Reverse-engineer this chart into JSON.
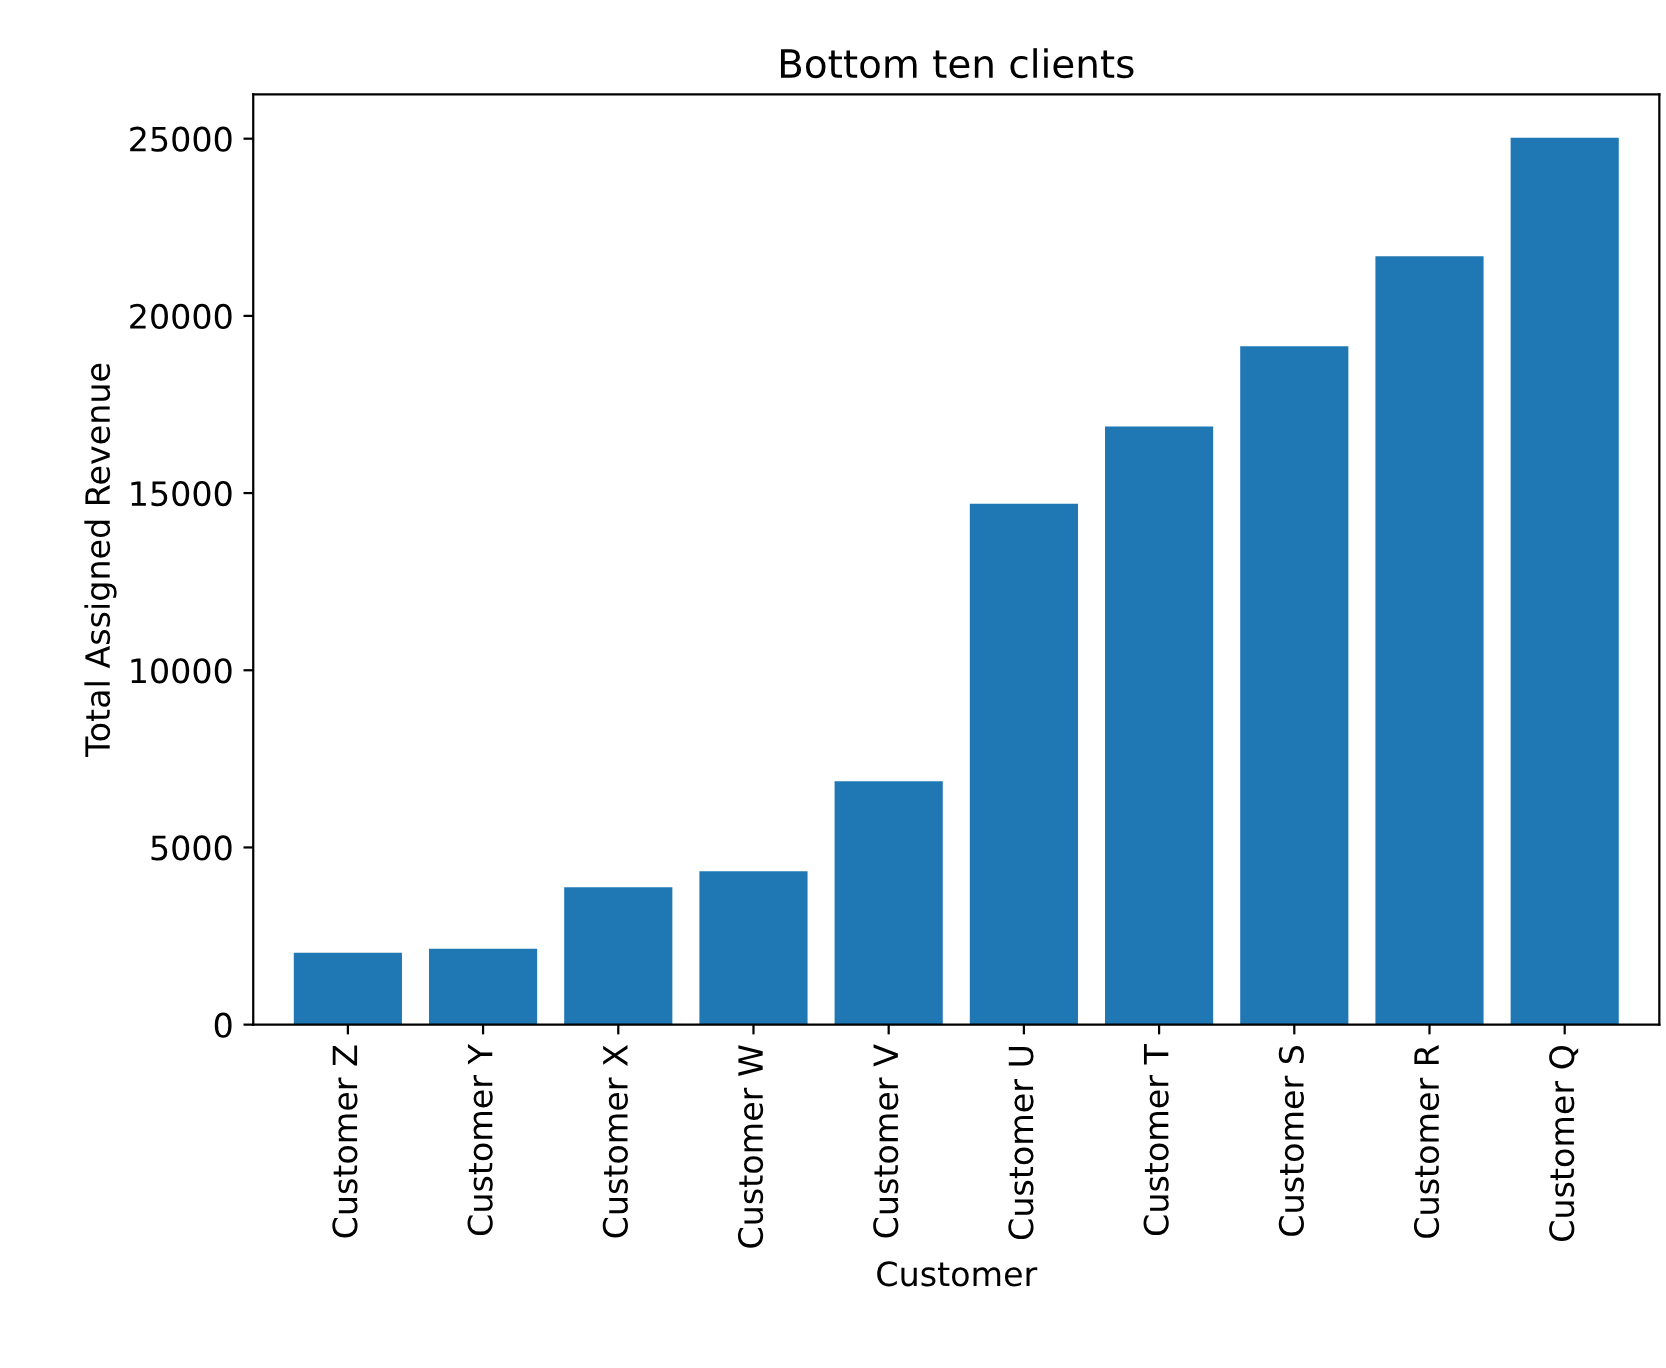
{
  "chart_data": {
    "type": "bar",
    "title": "Bottom ten clients",
    "xlabel": "Customer",
    "ylabel": "Total Assigned Revenue",
    "categories": [
      "Customer Z",
      "Customer Y",
      "Customer X",
      "Customer W",
      "Customer V",
      "Customer U",
      "Customer T",
      "Customer S",
      "Customer R",
      "Customer Q"
    ],
    "values": [
      2030,
      2140,
      3880,
      4330,
      6870,
      14700,
      16880,
      19140,
      21680,
      25030
    ],
    "color": "#1f77b4",
    "ylim": [
      0,
      26250
    ],
    "yticks": [
      0,
      5000,
      10000,
      15000,
      20000,
      25000
    ]
  }
}
